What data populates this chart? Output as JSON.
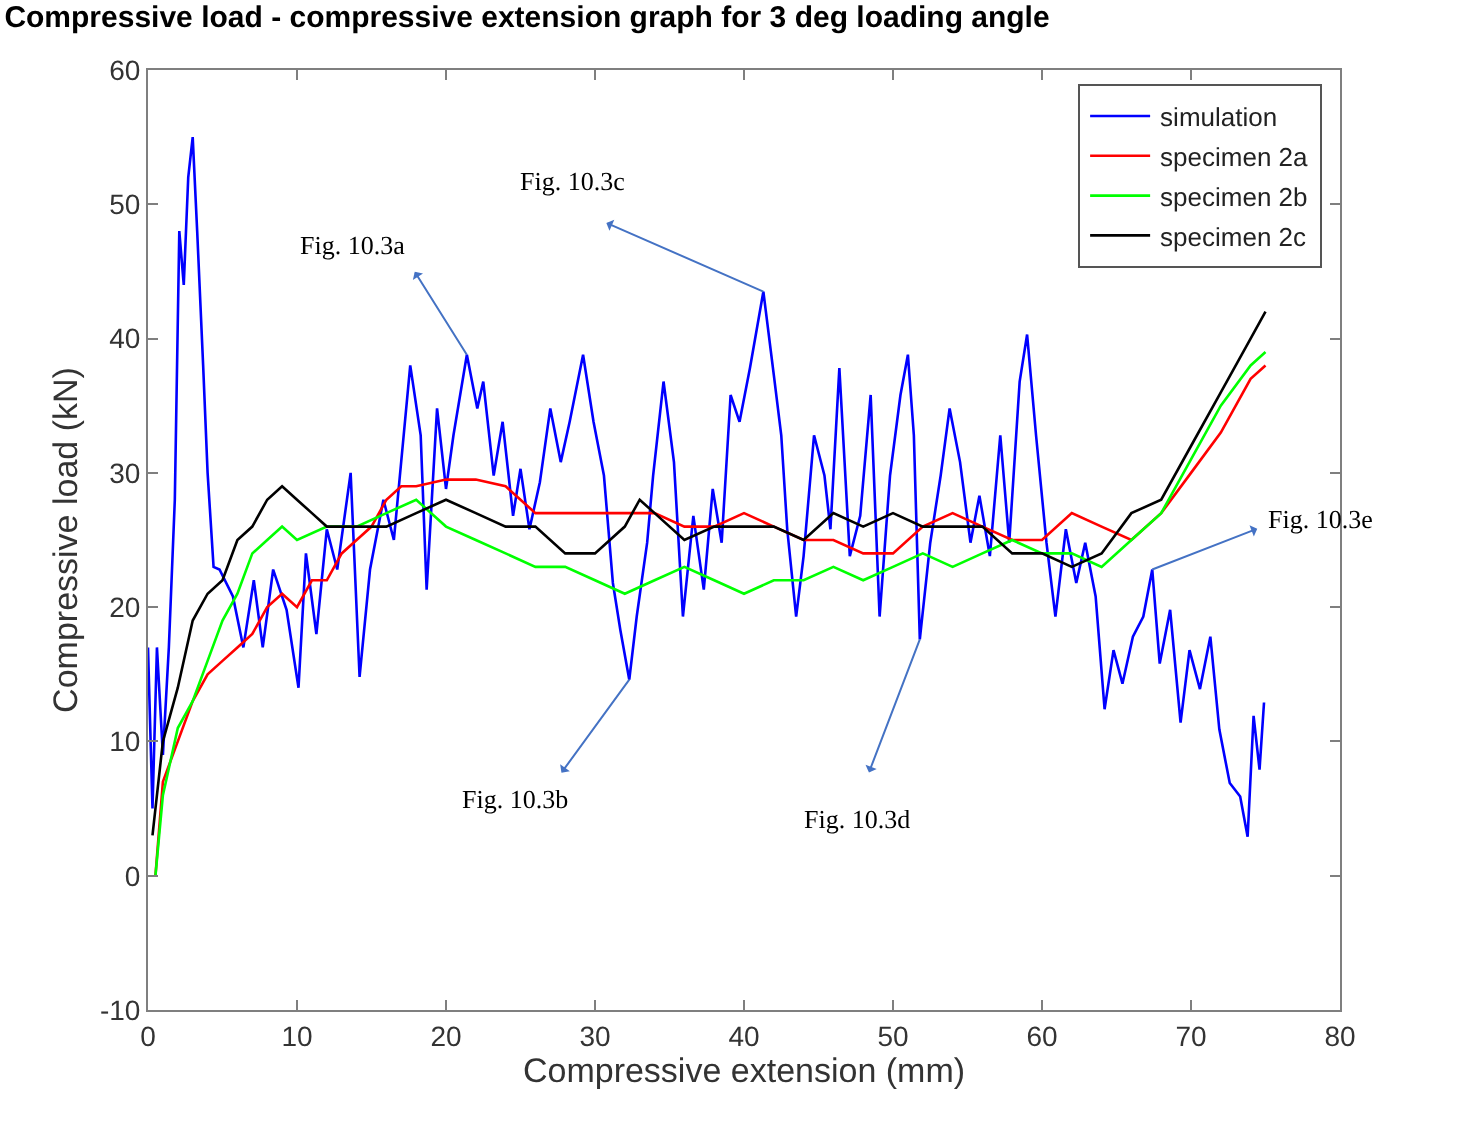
{
  "chart_data": {
    "type": "line",
    "title": "Compressive load - compressive extension graph for 3 deg loading angle",
    "xlabel": "Compressive extension (mm)",
    "ylabel": "Compressive load (kN)",
    "xlim": [
      0,
      80
    ],
    "xticks": [
      0,
      10,
      20,
      30,
      40,
      50,
      60,
      70,
      80
    ],
    "ylim": [
      -10,
      60
    ],
    "yticks": [
      -10,
      0,
      10,
      20,
      30,
      40,
      50,
      60
    ],
    "legend": "top right",
    "marker": "none",
    "line_style": "solid",
    "annotations": [
      {
        "text": "Fig. 10.3a",
        "x": 21.4,
        "y": 38.8
      },
      {
        "text": "Fig. 10.3c",
        "x": 41.3,
        "y": 43.5
      },
      {
        "text": "Fig. 10.3b",
        "x": 32.3,
        "y": 14.6
      },
      {
        "text": "Fig. 10.3d",
        "x": 51.8,
        "y": 17.6
      },
      {
        "text": "Fig. 10.3e",
        "x": 67.4,
        "y": 22.8
      }
    ],
    "series": [
      {
        "name": "simulation",
        "color": "#0000ff",
        "x": [
          0,
          0.3,
          0.6,
          1.0,
          1.4,
          1.8,
          2.1,
          2.4,
          2.7,
          3.0,
          3.3,
          3.7,
          4.0,
          4.4,
          4.8,
          5.7,
          6.4,
          7.1,
          7.7,
          8.4,
          9.3,
          10.1,
          10.6,
          11.3,
          12.0,
          12.7,
          13.6,
          14.2,
          14.9,
          15.8,
          16.5,
          17.6,
          18.3,
          18.7,
          19.4,
          20.0,
          20.5,
          21.4,
          22.1,
          22.5,
          23.2,
          23.8,
          24.5,
          25.0,
          25.6,
          26.3,
          27.0,
          27.7,
          28.3,
          29.2,
          29.9,
          30.6,
          31.2,
          31.7,
          32.3,
          32.8,
          33.5,
          33.9,
          34.6,
          35.3,
          35.9,
          36.6,
          37.3,
          37.9,
          38.5,
          39.1,
          39.7,
          40.4,
          41.3,
          42.0,
          42.5,
          42.9,
          43.5,
          44.0,
          44.7,
          45.4,
          45.8,
          46.4,
          47.1,
          47.8,
          48.5,
          49.1,
          49.8,
          50.5,
          51.0,
          51.4,
          51.8,
          52.5,
          53.2,
          53.8,
          54.5,
          55.2,
          55.8,
          56.5,
          57.2,
          57.8,
          58.5,
          59.0,
          59.6,
          60.3,
          60.9,
          61.6,
          62.3,
          62.9,
          63.6,
          64.2,
          64.8,
          65.4,
          66.1,
          66.8,
          67.4,
          67.9,
          68.6,
          69.3,
          69.9,
          70.6,
          71.3,
          71.9,
          72.6,
          73.3,
          73.8,
          74.2,
          74.6,
          74.9
        ],
        "values": [
          17,
          5,
          17,
          9,
          17,
          28,
          48,
          44,
          52,
          55,
          48,
          38,
          30,
          23,
          22.8,
          20.8,
          17,
          22,
          17,
          22.8,
          19.8,
          14,
          24,
          18,
          25.8,
          22.8,
          30,
          14.8,
          22.8,
          28,
          25,
          38,
          32.8,
          21.3,
          34.8,
          28.8,
          32.8,
          38.8,
          34.8,
          36.8,
          29.8,
          33.8,
          26.8,
          30.3,
          25.8,
          29.3,
          34.8,
          30.8,
          33.8,
          38.8,
          33.8,
          29.8,
          21.8,
          18.3,
          14.6,
          19.3,
          24.8,
          29.8,
          36.8,
          30.8,
          19.3,
          26.8,
          21.3,
          28.8,
          24.8,
          35.8,
          33.8,
          37.8,
          43.5,
          37.3,
          32.8,
          25.8,
          19.3,
          23.8,
          32.8,
          29.8,
          25.8,
          37.8,
          23.8,
          26.8,
          35.8,
          19.3,
          29.8,
          35.8,
          38.8,
          32.8,
          17.6,
          24.8,
          29.8,
          34.8,
          30.8,
          24.8,
          28.3,
          23.8,
          32.8,
          24.8,
          36.8,
          40.3,
          32.8,
          24.8,
          19.3,
          25.8,
          21.8,
          24.8,
          20.8,
          12.4,
          16.8,
          14.3,
          17.8,
          19.3,
          22.8,
          15.8,
          19.8,
          11.4,
          16.8,
          13.9,
          17.8,
          10.9,
          6.9,
          5.9,
          2.9,
          11.9,
          7.9,
          12.9
        ]
      },
      {
        "name": "specimen 2a",
        "color": "#ff0000",
        "x": [
          0.5,
          1,
          2,
          3,
          4,
          5,
          6,
          7,
          8,
          9,
          10,
          11,
          12,
          13,
          14,
          15,
          16,
          17,
          18,
          20,
          22,
          24,
          26,
          28,
          30,
          32,
          34,
          36,
          38,
          40,
          42,
          44,
          46,
          48,
          50,
          52,
          54,
          56,
          58,
          60,
          62,
          64,
          66,
          68,
          70,
          72,
          74,
          75
        ],
        "values": [
          0,
          7,
          10,
          13,
          15,
          16,
          17,
          18,
          20,
          21,
          20,
          22,
          22,
          24,
          25,
          26,
          28,
          29,
          29,
          29.5,
          29.5,
          29,
          27,
          27,
          27,
          27,
          27,
          26,
          26,
          27,
          26,
          25,
          25,
          24,
          24,
          26,
          27,
          26,
          25,
          25,
          27,
          26,
          25,
          27,
          30,
          33,
          37,
          38
        ]
      },
      {
        "name": "specimen 2b",
        "color": "#00ff00",
        "x": [
          0.5,
          1,
          2,
          3,
          4,
          5,
          6,
          7,
          8,
          9,
          10,
          12,
          14,
          16,
          18,
          20,
          22,
          24,
          26,
          28,
          30,
          32,
          34,
          36,
          38,
          40,
          42,
          44,
          46,
          48,
          50,
          52,
          54,
          56,
          58,
          60,
          62,
          64,
          66,
          68,
          70,
          72,
          74,
          75
        ],
        "values": [
          0,
          6,
          11,
          13,
          16,
          19,
          21,
          24,
          25,
          26,
          25,
          26,
          26,
          27,
          28,
          26,
          25,
          24,
          23,
          23,
          22,
          21,
          22,
          23,
          22,
          21,
          22,
          22,
          23,
          22,
          23,
          24,
          23,
          24,
          25,
          24,
          24,
          23,
          25,
          27,
          31,
          35,
          38,
          39
        ]
      },
      {
        "name": "specimen 2c",
        "color": "#000000",
        "x": [
          0.3,
          1,
          2,
          3,
          4,
          5,
          6,
          7,
          8,
          9,
          10,
          11,
          12,
          14,
          16,
          18,
          20,
          22,
          24,
          26,
          28,
          30,
          32,
          33,
          34,
          36,
          38,
          40,
          42,
          44,
          46,
          48,
          50,
          52,
          54,
          56,
          58,
          60,
          62,
          64,
          66,
          68,
          70,
          72,
          74,
          75
        ],
        "values": [
          3,
          10,
          14,
          19,
          21,
          22,
          25,
          26,
          28,
          29,
          28,
          27,
          26,
          26,
          26,
          27,
          28,
          27,
          26,
          26,
          24,
          24,
          26,
          28,
          27,
          25,
          26,
          26,
          26,
          25,
          27,
          26,
          27,
          26,
          26,
          26,
          24,
          24,
          23,
          24,
          27,
          28,
          32,
          36,
          40,
          42
        ]
      }
    ]
  }
}
